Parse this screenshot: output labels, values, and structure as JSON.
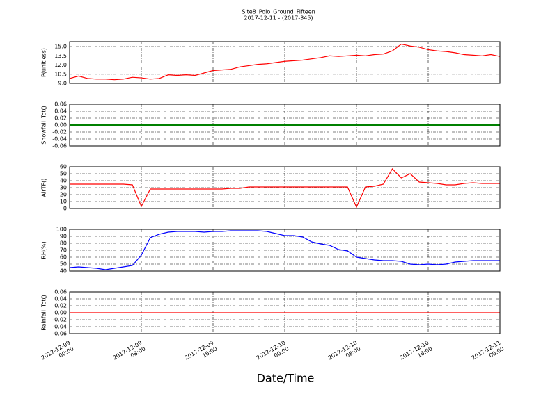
{
  "figure": {
    "title": "Site8_Polo_Ground_Fifteen",
    "subtitle": "2017-12-11 - (2017-345)",
    "xlabel": "Date/Time",
    "x": [
      "2017-12-09 00:00",
      "2017-12-09 01:00",
      "2017-12-09 02:00",
      "2017-12-09 03:00",
      "2017-12-09 04:00",
      "2017-12-09 05:00",
      "2017-12-09 06:00",
      "2017-12-09 07:00",
      "2017-12-09 08:00",
      "2017-12-09 09:00",
      "2017-12-09 10:00",
      "2017-12-09 11:00",
      "2017-12-09 12:00",
      "2017-12-09 13:00",
      "2017-12-09 14:00",
      "2017-12-09 15:00",
      "2017-12-09 16:00",
      "2017-12-09 17:00",
      "2017-12-09 18:00",
      "2017-12-09 19:00",
      "2017-12-09 20:00",
      "2017-12-09 21:00",
      "2017-12-09 22:00",
      "2017-12-09 23:00",
      "2017-12-10 00:00",
      "2017-12-10 01:00",
      "2017-12-10 02:00",
      "2017-12-10 03:00",
      "2017-12-10 04:00",
      "2017-12-10 05:00",
      "2017-12-10 06:00",
      "2017-12-10 07:00",
      "2017-12-10 08:00",
      "2017-12-10 09:00",
      "2017-12-10 10:00",
      "2017-12-10 11:00",
      "2017-12-10 12:00",
      "2017-12-10 13:00",
      "2017-12-10 14:00",
      "2017-12-10 15:00",
      "2017-12-10 16:00",
      "2017-12-10 17:00",
      "2017-12-10 18:00",
      "2017-12-10 19:00",
      "2017-12-10 20:00",
      "2017-12-10 21:00",
      "2017-12-10 22:00",
      "2017-12-10 23:00",
      "2017-12-11 00:00"
    ],
    "xlim": [
      "2017-12-09 00:00",
      "2017-12-11 00:00"
    ],
    "xticks": [
      "2017-12-09 00:00",
      "2017-12-09 08:00",
      "2017-12-09 16:00",
      "2017-12-10 00:00",
      "2017-12-10 08:00",
      "2017-12-10 16:00",
      "2017-12-11 00:00"
    ]
  },
  "chart_data": [
    {
      "type": "line",
      "ylabel": "P(unitless)",
      "ylim": [
        9.0,
        15.8
      ],
      "grid": true,
      "yticks": [
        {
          "value": 9,
          "label": "9.0"
        },
        10.5,
        {
          "value": 12,
          "label": "12.0"
        },
        13.5,
        {
          "value": 15,
          "label": "15.0"
        }
      ],
      "series": [
        {
          "color": "#ff0000",
          "values": [
            9.8,
            10.2,
            9.8,
            9.7,
            9.7,
            9.6,
            9.7,
            10.0,
            9.9,
            9.7,
            9.8,
            10.4,
            10.3,
            10.4,
            10.3,
            10.7,
            11.1,
            11.2,
            11.3,
            11.7,
            11.9,
            12.1,
            12.2,
            12.4,
            12.6,
            12.7,
            12.8,
            13.0,
            13.2,
            13.5,
            13.4,
            13.5,
            13.6,
            13.5,
            13.7,
            13.8,
            14.3,
            15.4,
            15.1,
            14.9,
            14.5,
            14.3,
            14.2,
            14.0,
            13.7,
            13.6,
            13.5,
            13.7,
            13.4
          ]
        }
      ]
    },
    {
      "type": "line",
      "ylabel": "Snowfall_Tot()",
      "ylim": [
        -0.06,
        0.06
      ],
      "grid": true,
      "line_width": 4,
      "yticks": [
        -0.06,
        -0.04,
        -0.02,
        {
          "value": 0,
          "label": "0.00"
        },
        0.02,
        0.04,
        0.06
      ],
      "series": [
        {
          "color": "#008000",
          "values": [
            0,
            0,
            0,
            0,
            0,
            0,
            0,
            0,
            0,
            0,
            0,
            0,
            0,
            0,
            0,
            0,
            0,
            0,
            0,
            0,
            0,
            0,
            0,
            0,
            0,
            0,
            0,
            0,
            0,
            0,
            0,
            0,
            0,
            0,
            0,
            0,
            0,
            0,
            0,
            0,
            0,
            0,
            0,
            0,
            0,
            0,
            0,
            0,
            0
          ]
        }
      ]
    },
    {
      "type": "line",
      "ylabel": "AirTF()",
      "ylim": [
        0,
        60
      ],
      "grid": true,
      "yticks": [
        0,
        10,
        20,
        30,
        40,
        50,
        60
      ],
      "series": [
        {
          "color": "#ff0000",
          "values": [
            35,
            35,
            35,
            35,
            35,
            35,
            35,
            34,
            3,
            28,
            28,
            28,
            28,
            28,
            28,
            28,
            28,
            28,
            29,
            29,
            31,
            31,
            31,
            31,
            31,
            31,
            31,
            31,
            31,
            31,
            31,
            31,
            2,
            31,
            32,
            35,
            57,
            44,
            50,
            38,
            37,
            36,
            34,
            34,
            36,
            37,
            36,
            36,
            36
          ]
        }
      ]
    },
    {
      "type": "line",
      "ylabel": "RH(%)",
      "ylim": [
        40,
        100
      ],
      "grid": true,
      "yticks": [
        40,
        50,
        60,
        70,
        80,
        90,
        100
      ],
      "series": [
        {
          "color": "#0000ff",
          "values": [
            45,
            46,
            45,
            44,
            42,
            44,
            46,
            48,
            63,
            88,
            93,
            96,
            97,
            97,
            97,
            96,
            97,
            97,
            98,
            98,
            98,
            98,
            97,
            94,
            91,
            91,
            89,
            82,
            79,
            77,
            71,
            69,
            60,
            58,
            56,
            55,
            55,
            54,
            50,
            49,
            50,
            49,
            50,
            53,
            54,
            55,
            55,
            55,
            55
          ]
        }
      ]
    },
    {
      "type": "line",
      "ylabel": "Rainfall_Tot()",
      "ylim": [
        -0.06,
        0.06
      ],
      "grid": true,
      "yticks": [
        -0.06,
        -0.04,
        -0.02,
        {
          "value": 0,
          "label": "0.00"
        },
        0.02,
        0.04,
        0.06
      ],
      "series": [
        {
          "color": "#ff0000",
          "values": [
            0,
            0,
            0,
            0,
            0,
            0,
            0,
            0,
            0,
            0,
            0,
            0,
            0,
            0,
            0,
            0,
            0,
            0,
            0,
            0,
            0,
            0,
            0,
            0,
            0,
            0,
            0,
            0,
            0,
            0,
            0,
            0,
            0,
            0,
            0,
            0,
            0,
            0,
            0,
            0,
            0,
            0,
            0,
            0,
            0,
            0,
            0,
            0,
            0
          ]
        }
      ]
    }
  ]
}
